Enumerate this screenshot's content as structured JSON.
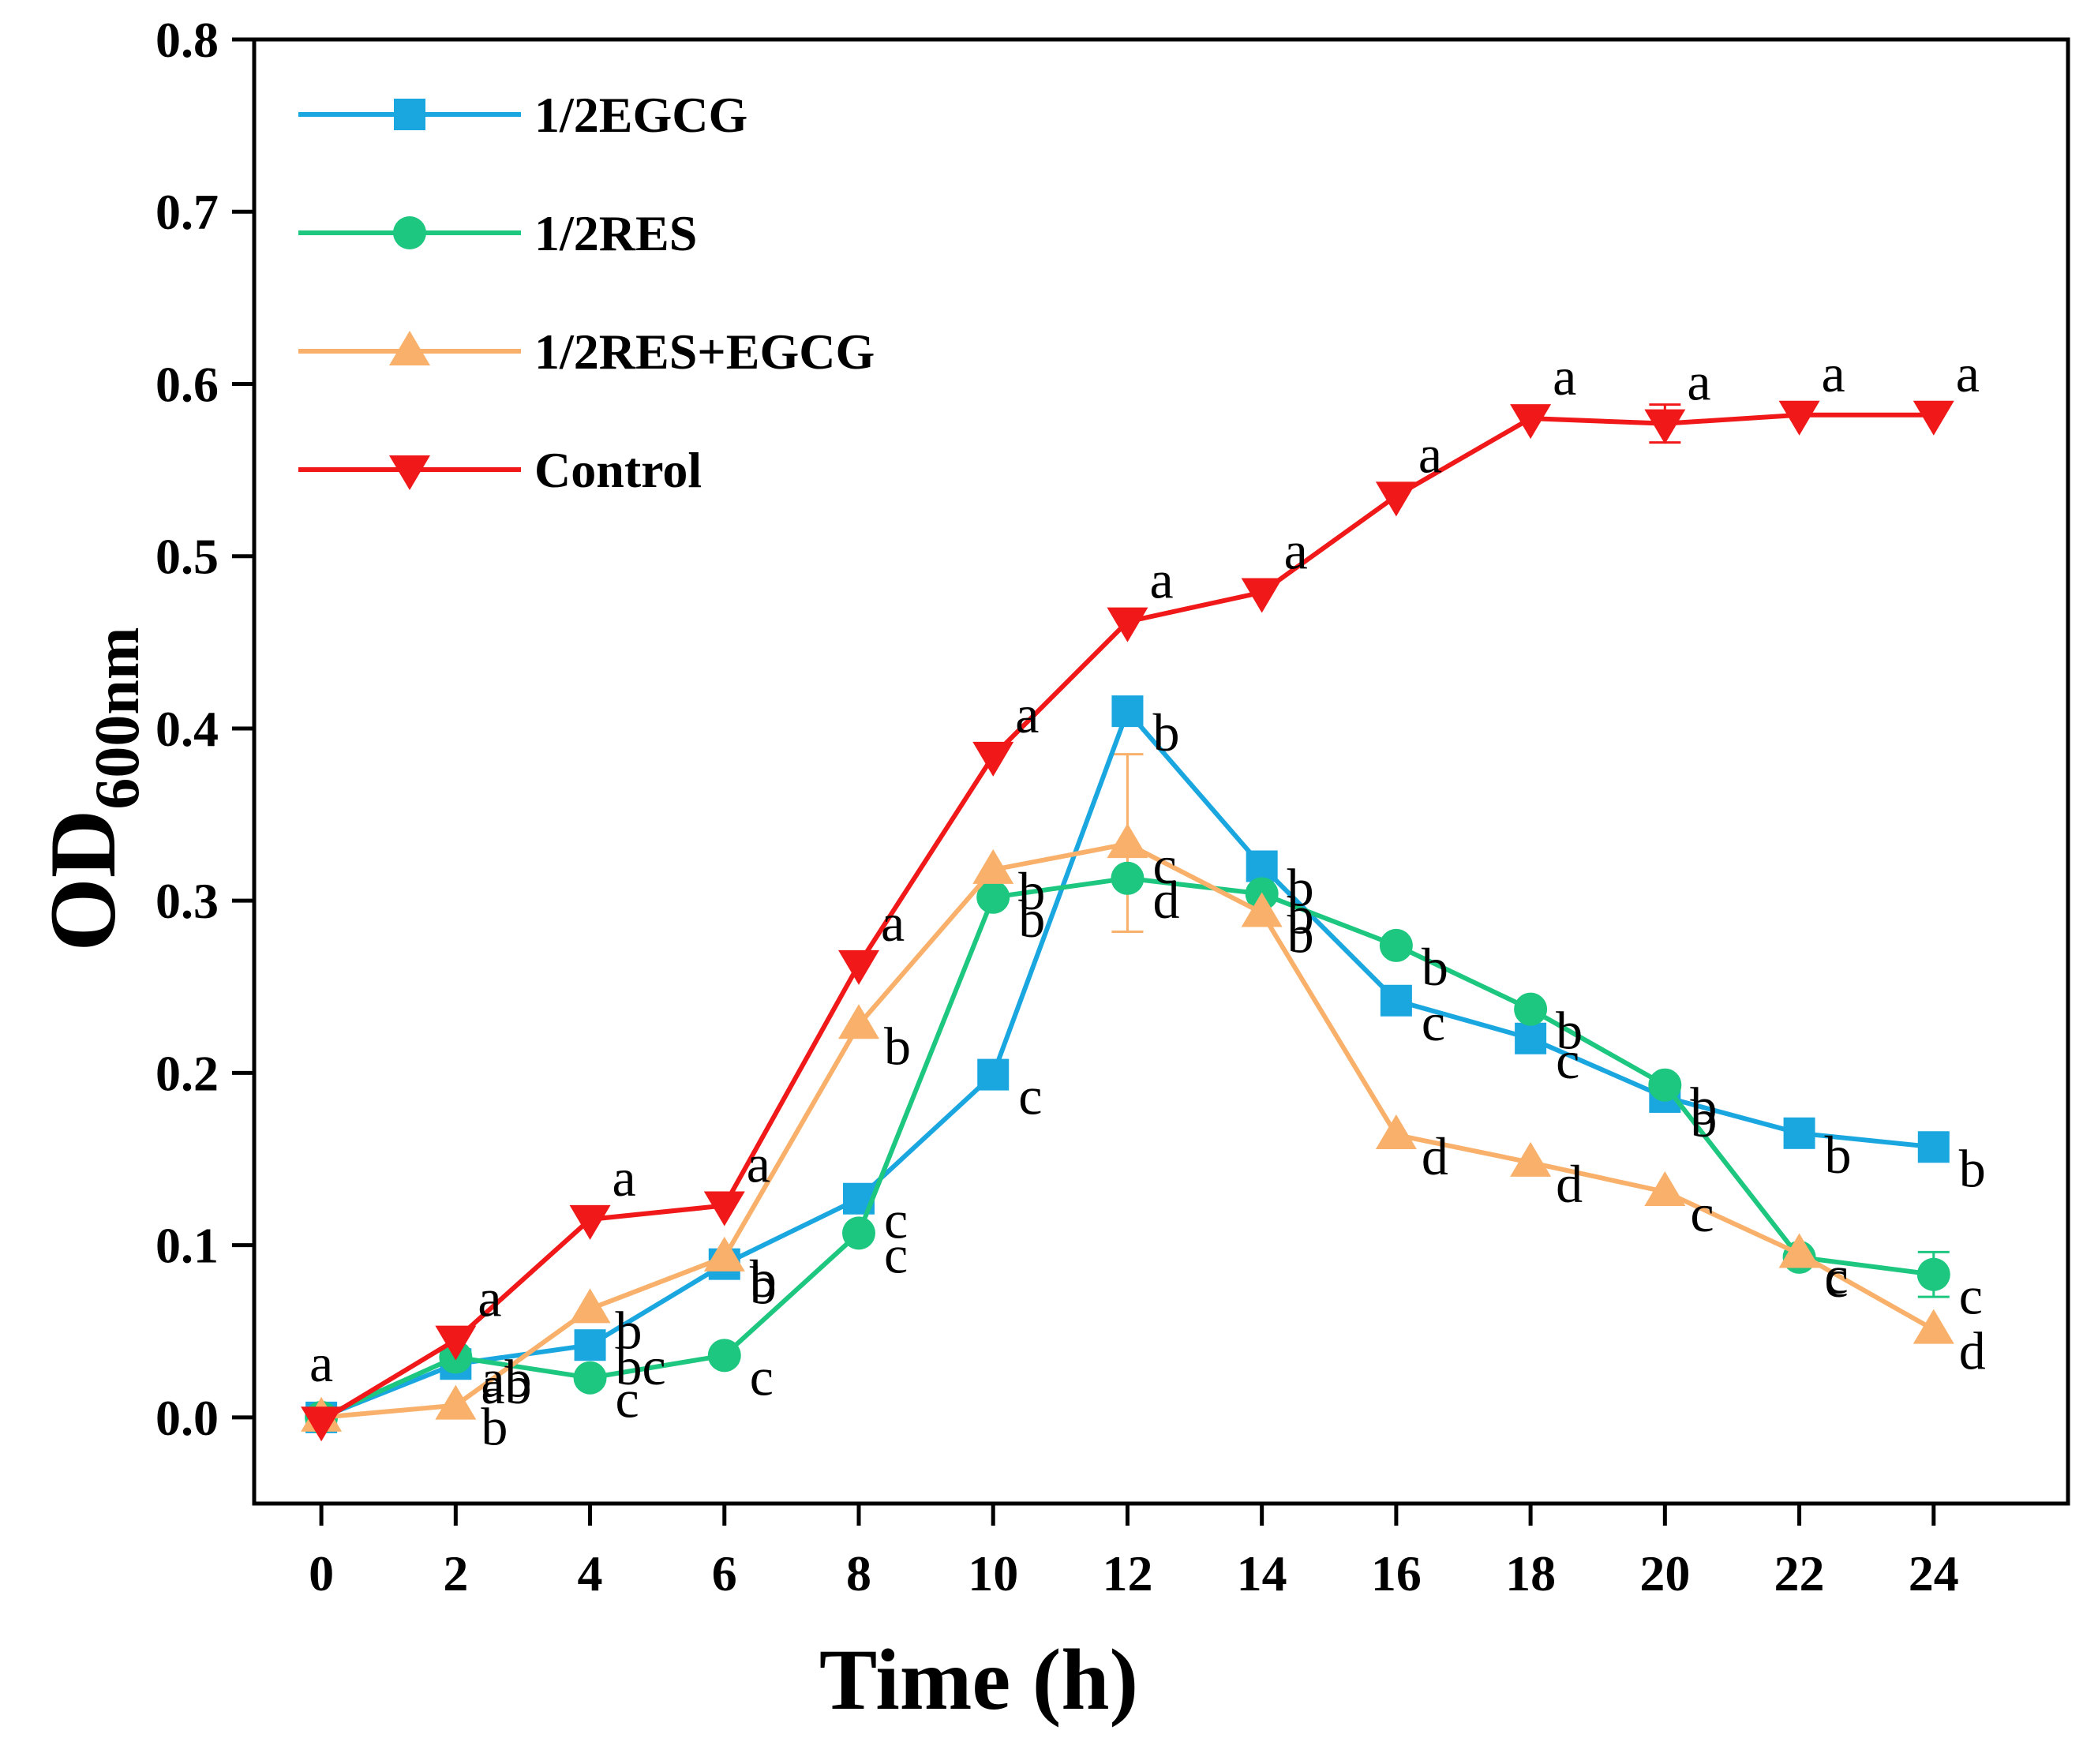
{
  "chart_data": {
    "type": "line",
    "xlabel": "Time (h)",
    "ylabel_main": "OD",
    "ylabel_sub": "600nm",
    "xlim": [
      -1,
      26
    ],
    "ylim": [
      -0.05,
      0.8
    ],
    "x_ticks": [
      "0",
      "2",
      "4",
      "6",
      "8",
      "10",
      "12",
      "14",
      "16",
      "18",
      "20",
      "22",
      "24"
    ],
    "y_ticks": [
      "0.0",
      "0.1",
      "0.2",
      "0.3",
      "0.4",
      "0.5",
      "0.6",
      "0.7",
      "0.8"
    ],
    "legend_position": "top-left",
    "series": [
      {
        "name": "1/2EGCG",
        "color": "#1AA7E0",
        "marker": "square",
        "x": [
          0,
          2,
          4,
          6,
          8,
          10,
          12,
          14,
          16,
          18,
          20,
          22,
          24
        ],
        "values": [
          0.0,
          0.031,
          0.042,
          0.089,
          0.127,
          0.199,
          0.41,
          0.32,
          0.242,
          0.22,
          0.186,
          0.165,
          0.157
        ],
        "letters": [
          "",
          "ab",
          "bc",
          "b",
          "c",
          "c",
          "b",
          "b",
          "c",
          "c",
          "b",
          "b",
          "b"
        ]
      },
      {
        "name": "1/2RES",
        "color": "#1DC77F",
        "marker": "circle",
        "x": [
          0,
          2,
          4,
          6,
          8,
          10,
          12,
          14,
          16,
          18,
          20,
          22,
          24
        ],
        "values": [
          0.0,
          0.035,
          0.023,
          0.036,
          0.107,
          0.302,
          0.313,
          0.304,
          0.274,
          0.237,
          0.193,
          0.093,
          0.083
        ],
        "letters": [
          "",
          "ab",
          "c",
          "c",
          "c",
          "b",
          "d",
          "b",
          "b",
          "b",
          "b",
          "c",
          "c"
        ]
      },
      {
        "name": "1/2RES+EGCG",
        "color": "#F8B06B",
        "marker": "triangle-up",
        "x": [
          0,
          2,
          4,
          6,
          8,
          10,
          12,
          14,
          16,
          18,
          20,
          22,
          24
        ],
        "values": [
          0.0,
          0.007,
          0.063,
          0.093,
          0.228,
          0.318,
          0.333,
          0.293,
          0.164,
          0.148,
          0.131,
          0.095,
          0.051
        ],
        "letters": [
          "",
          "b",
          "b",
          "b",
          "b",
          "b",
          "c",
          "b",
          "d",
          "d",
          "c",
          "c",
          "d"
        ]
      },
      {
        "name": "Control",
        "color": "#F01818",
        "marker": "triangle-down",
        "x": [
          0,
          2,
          4,
          6,
          8,
          10,
          12,
          14,
          16,
          18,
          20,
          22,
          24
        ],
        "values": [
          -0.002,
          0.045,
          0.115,
          0.123,
          0.263,
          0.384,
          0.462,
          0.479,
          0.535,
          0.58,
          0.577,
          0.582,
          0.582
        ],
        "letters": [
          "a",
          "a",
          "a",
          "a",
          "a",
          "a",
          "a",
          "a",
          "a",
          "a",
          "a",
          "a",
          "a"
        ]
      }
    ],
    "error_bars": [
      {
        "series": "1/2RES+EGCG",
        "x": 12,
        "low": 0.282,
        "high": 0.385
      },
      {
        "series": "1/2RES",
        "x": 24,
        "low": 0.07,
        "high": 0.096
      },
      {
        "series": "Control",
        "x": 20,
        "low": 0.566,
        "high": 0.588
      }
    ]
  }
}
